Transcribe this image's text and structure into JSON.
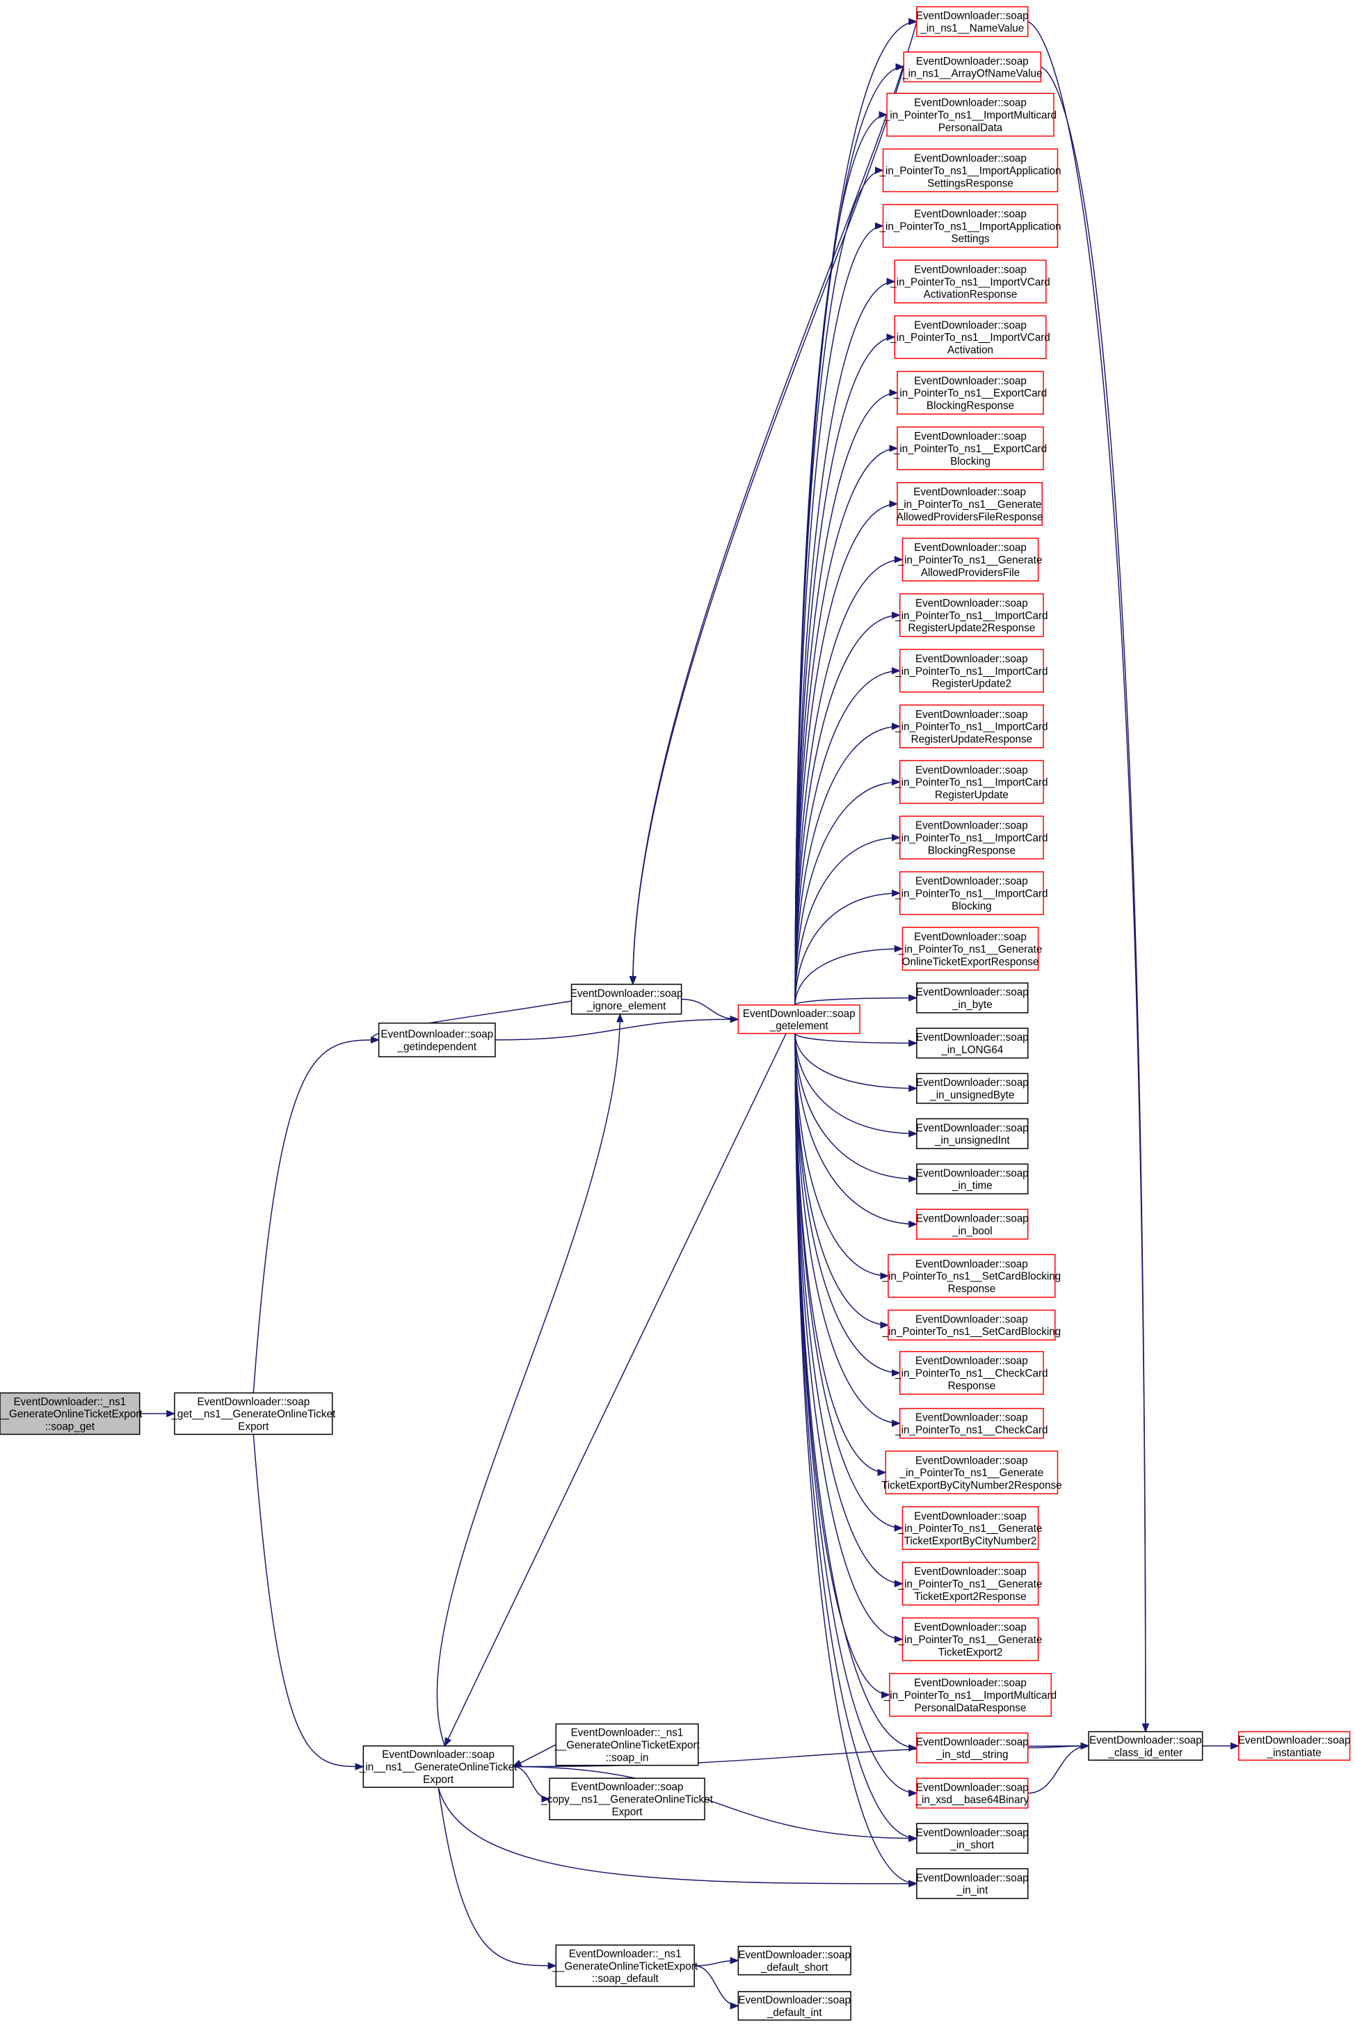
{
  "colors": {
    "edge": "#191970",
    "border_red": "#ff0000",
    "border_black": "#000000",
    "root_fill": "#bfbfbf",
    "node_fill": "#ffffff"
  },
  "nodes": [
    {
      "id": "A",
      "style": "root",
      "lines": [
        "EventDownloader::_ns1",
        "__GenerateOnlineTicketExport",
        "::soap_get"
      ]
    },
    {
      "id": "B",
      "style": "black",
      "lines": [
        "EventDownloader::soap",
        "_get__ns1__GenerateOnlineTicket",
        "Export"
      ]
    },
    {
      "id": "C",
      "style": "black",
      "lines": [
        "EventDownloader::soap",
        "_getindependent"
      ]
    },
    {
      "id": "D",
      "style": "black",
      "lines": [
        "EventDownloader::soap",
        "_ignore_element"
      ]
    },
    {
      "id": "E",
      "style": "red",
      "lines": [
        "EventDownloader::soap",
        "_getelement"
      ]
    },
    {
      "id": "F",
      "style": "black",
      "lines": [
        "EventDownloader::soap",
        "_in__ns1__GenerateOnlineTicket",
        "Export"
      ]
    },
    {
      "id": "G",
      "style": "black",
      "lines": [
        "EventDownloader::_ns1",
        "__GenerateOnlineTicketExport",
        "::soap_in"
      ]
    },
    {
      "id": "H",
      "style": "black",
      "lines": [
        "EventDownloader::soap",
        "_copy__ns1__GenerateOnlineTicket",
        "Export"
      ]
    },
    {
      "id": "I",
      "style": "black",
      "lines": [
        "EventDownloader::_ns1",
        "__GenerateOnlineTicketExport",
        "::soap_default"
      ]
    },
    {
      "id": "J",
      "style": "black",
      "lines": [
        "EventDownloader::soap",
        "_default_short"
      ]
    },
    {
      "id": "K",
      "style": "black",
      "lines": [
        "EventDownloader::soap",
        "_default_int"
      ]
    },
    {
      "id": "L",
      "style": "black",
      "lines": [
        "EventDownloader::soap",
        "_class_id_enter"
      ]
    },
    {
      "id": "M",
      "style": "red",
      "lines": [
        "EventDownloader::soap",
        "_instantiate"
      ]
    },
    {
      "id": "r0",
      "style": "red",
      "lines": [
        "EventDownloader::soap",
        "_in_ns1__NameValue"
      ]
    },
    {
      "id": "r1",
      "style": "red",
      "lines": [
        "EventDownloader::soap",
        "_in_ns1__ArrayOfNameValue"
      ]
    },
    {
      "id": "r2",
      "style": "red",
      "lines": [
        "EventDownloader::soap",
        "_in_PointerTo_ns1__ImportMulticard",
        "PersonalData"
      ]
    },
    {
      "id": "r3",
      "style": "red",
      "lines": [
        "EventDownloader::soap",
        "_in_PointerTo_ns1__ImportApplication",
        "SettingsResponse"
      ]
    },
    {
      "id": "r4",
      "style": "red",
      "lines": [
        "EventDownloader::soap",
        "_in_PointerTo_ns1__ImportApplication",
        "Settings"
      ]
    },
    {
      "id": "r5",
      "style": "red",
      "lines": [
        "EventDownloader::soap",
        "_in_PointerTo_ns1__ImportVCard",
        "ActivationResponse"
      ]
    },
    {
      "id": "r6",
      "style": "red",
      "lines": [
        "EventDownloader::soap",
        "_in_PointerTo_ns1__ImportVCard",
        "Activation"
      ]
    },
    {
      "id": "r7",
      "style": "red",
      "lines": [
        "EventDownloader::soap",
        "_in_PointerTo_ns1__ExportCard",
        "BlockingResponse"
      ]
    },
    {
      "id": "r8",
      "style": "red",
      "lines": [
        "EventDownloader::soap",
        "_in_PointerTo_ns1__ExportCard",
        "Blocking"
      ]
    },
    {
      "id": "r9",
      "style": "red",
      "lines": [
        "EventDownloader::soap",
        "_in_PointerTo_ns1__Generate",
        "AllowedProvidersFileResponse"
      ]
    },
    {
      "id": "r10",
      "style": "red",
      "lines": [
        "EventDownloader::soap",
        "_in_PointerTo_ns1__Generate",
        "AllowedProvidersFile"
      ]
    },
    {
      "id": "r11",
      "style": "red",
      "lines": [
        "EventDownloader::soap",
        "_in_PointerTo_ns1__ImportCard",
        "RegisterUpdate2Response"
      ]
    },
    {
      "id": "r12",
      "style": "red",
      "lines": [
        "EventDownloader::soap",
        "_in_PointerTo_ns1__ImportCard",
        "RegisterUpdate2"
      ]
    },
    {
      "id": "r13",
      "style": "red",
      "lines": [
        "EventDownloader::soap",
        "_in_PointerTo_ns1__ImportCard",
        "RegisterUpdateResponse"
      ]
    },
    {
      "id": "r14",
      "style": "red",
      "lines": [
        "EventDownloader::soap",
        "_in_PointerTo_ns1__ImportCard",
        "RegisterUpdate"
      ]
    },
    {
      "id": "r15",
      "style": "red",
      "lines": [
        "EventDownloader::soap",
        "_in_PointerTo_ns1__ImportCard",
        "BlockingResponse"
      ]
    },
    {
      "id": "r16",
      "style": "red",
      "lines": [
        "EventDownloader::soap",
        "_in_PointerTo_ns1__ImportCard",
        "Blocking"
      ]
    },
    {
      "id": "r17",
      "style": "red",
      "lines": [
        "EventDownloader::soap",
        "_in_PointerTo_ns1__Generate",
        "OnlineTicketExportResponse"
      ]
    },
    {
      "id": "r18",
      "style": "black",
      "lines": [
        "EventDownloader::soap",
        "_in_byte"
      ]
    },
    {
      "id": "r19",
      "style": "black",
      "lines": [
        "EventDownloader::soap",
        "_in_LONG64"
      ]
    },
    {
      "id": "r20",
      "style": "black",
      "lines": [
        "EventDownloader::soap",
        "_in_unsignedByte"
      ]
    },
    {
      "id": "r21",
      "style": "black",
      "lines": [
        "EventDownloader::soap",
        "_in_unsignedInt"
      ]
    },
    {
      "id": "r22",
      "style": "black",
      "lines": [
        "EventDownloader::soap",
        "_in_time"
      ]
    },
    {
      "id": "r23",
      "style": "red",
      "lines": [
        "EventDownloader::soap",
        "_in_bool"
      ]
    },
    {
      "id": "r24",
      "style": "red",
      "lines": [
        "EventDownloader::soap",
        "_in_PointerTo_ns1__SetCardBlocking",
        "Response"
      ]
    },
    {
      "id": "r25",
      "style": "red",
      "lines": [
        "EventDownloader::soap",
        "_in_PointerTo_ns1__SetCardBlocking"
      ]
    },
    {
      "id": "r26",
      "style": "red",
      "lines": [
        "EventDownloader::soap",
        "_in_PointerTo_ns1__CheckCard",
        "Response"
      ]
    },
    {
      "id": "r27",
      "style": "red",
      "lines": [
        "EventDownloader::soap",
        "_in_PointerTo_ns1__CheckCard"
      ]
    },
    {
      "id": "r28",
      "style": "red",
      "lines": [
        "EventDownloader::soap",
        "_in_PointerTo_ns1__Generate",
        "TicketExportByCityNumber2Response"
      ]
    },
    {
      "id": "r29",
      "style": "red",
      "lines": [
        "EventDownloader::soap",
        "_in_PointerTo_ns1__Generate",
        "TicketExportByCityNumber2"
      ]
    },
    {
      "id": "r30",
      "style": "red",
      "lines": [
        "EventDownloader::soap",
        "_in_PointerTo_ns1__Generate",
        "TicketExport2Response"
      ]
    },
    {
      "id": "r31",
      "style": "red",
      "lines": [
        "EventDownloader::soap",
        "_in_PointerTo_ns1__Generate",
        "TicketExport2"
      ]
    },
    {
      "id": "r32",
      "style": "red",
      "lines": [
        "EventDownloader::soap",
        "_in_PointerTo_ns1__ImportMulticard",
        "PersonalDataResponse"
      ]
    },
    {
      "id": "r33",
      "style": "red",
      "lines": [
        "EventDownloader::soap",
        "_in_std__string"
      ]
    },
    {
      "id": "r34",
      "style": "red",
      "lines": [
        "EventDownloader::soap",
        "_in_xsd__base64Binary"
      ]
    },
    {
      "id": "r35",
      "style": "black",
      "lines": [
        "EventDownloader::soap",
        "_in_short"
      ]
    },
    {
      "id": "r36",
      "style": "black",
      "lines": [
        "EventDownloader::soap",
        "_in_int"
      ]
    }
  ],
  "edges": [
    [
      "A",
      "B"
    ],
    [
      "B",
      "C"
    ],
    [
      "B",
      "F"
    ],
    [
      "C",
      "D"
    ],
    [
      "C",
      "E"
    ],
    [
      "D",
      "E"
    ],
    [
      "r0",
      "D"
    ],
    [
      "r1",
      "D"
    ],
    [
      "F",
      "D"
    ],
    [
      "E",
      "F"
    ],
    [
      "G",
      "F"
    ],
    [
      "F",
      "H"
    ],
    [
      "F",
      "I"
    ],
    [
      "F",
      "r35"
    ],
    [
      "F",
      "r36"
    ],
    [
      "F",
      "L"
    ],
    [
      "I",
      "J"
    ],
    [
      "I",
      "K"
    ],
    [
      "E",
      "r0"
    ],
    [
      "E",
      "r1"
    ],
    [
      "E",
      "r2"
    ],
    [
      "E",
      "r3"
    ],
    [
      "E",
      "r4"
    ],
    [
      "E",
      "r5"
    ],
    [
      "E",
      "r6"
    ],
    [
      "E",
      "r7"
    ],
    [
      "E",
      "r8"
    ],
    [
      "E",
      "r9"
    ],
    [
      "E",
      "r10"
    ],
    [
      "E",
      "r11"
    ],
    [
      "E",
      "r12"
    ],
    [
      "E",
      "r13"
    ],
    [
      "E",
      "r14"
    ],
    [
      "E",
      "r15"
    ],
    [
      "E",
      "r16"
    ],
    [
      "E",
      "r17"
    ],
    [
      "E",
      "r18"
    ],
    [
      "E",
      "r19"
    ],
    [
      "E",
      "r20"
    ],
    [
      "E",
      "r21"
    ],
    [
      "E",
      "r22"
    ],
    [
      "E",
      "r23"
    ],
    [
      "E",
      "r24"
    ],
    [
      "E",
      "r25"
    ],
    [
      "E",
      "r26"
    ],
    [
      "E",
      "r27"
    ],
    [
      "E",
      "r28"
    ],
    [
      "E",
      "r29"
    ],
    [
      "E",
      "r30"
    ],
    [
      "E",
      "r31"
    ],
    [
      "E",
      "r32"
    ],
    [
      "E",
      "r33"
    ],
    [
      "E",
      "r34"
    ],
    [
      "E",
      "r35"
    ],
    [
      "E",
      "r36"
    ],
    [
      "r0",
      "L"
    ],
    [
      "r1",
      "L"
    ],
    [
      "r33",
      "L"
    ],
    [
      "r34",
      "L"
    ],
    [
      "L",
      "M"
    ]
  ]
}
